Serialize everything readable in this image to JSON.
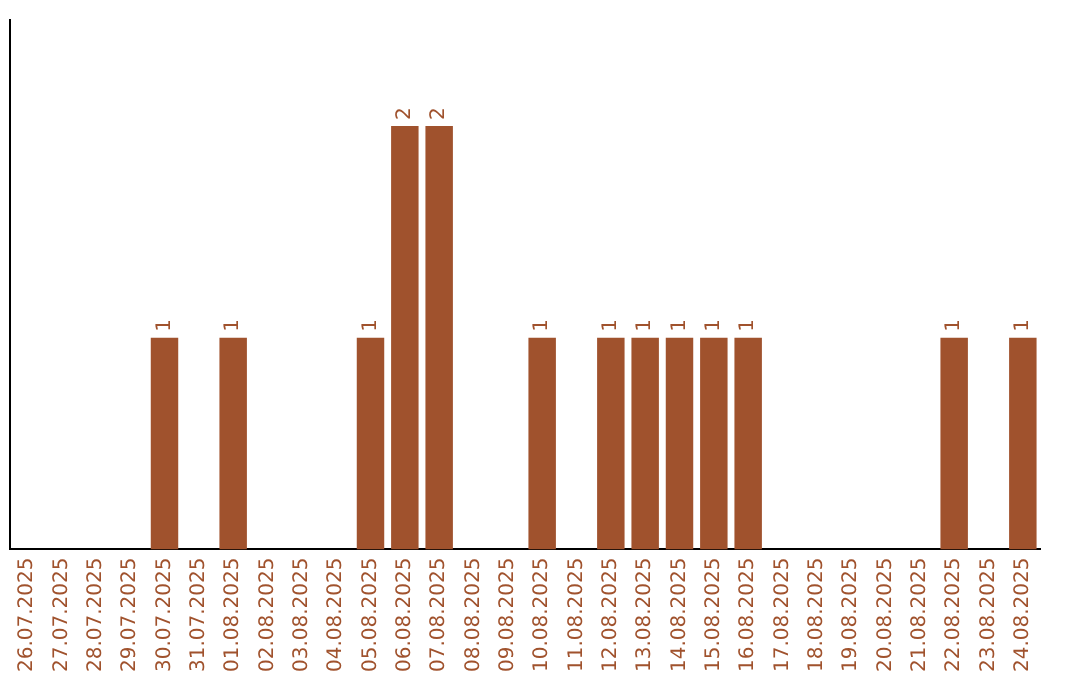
{
  "chart_data": {
    "type": "bar",
    "categories": [
      "26.07.2025",
      "27.07.2025",
      "28.07.2025",
      "29.07.2025",
      "30.07.2025",
      "31.07.2025",
      "01.08.2025",
      "02.08.2025",
      "03.08.2025",
      "04.08.2025",
      "05.08.2025",
      "06.08.2025",
      "07.08.2025",
      "08.08.2025",
      "09.08.2025",
      "10.08.2025",
      "11.08.2025",
      "12.08.2025",
      "13.08.2025",
      "14.08.2025",
      "15.08.2025",
      "16.08.2025",
      "17.08.2025",
      "18.08.2025",
      "19.08.2025",
      "20.08.2025",
      "21.08.2025",
      "22.08.2025",
      "23.08.2025",
      "24.08.2025"
    ],
    "values": [
      0,
      0,
      0,
      0,
      1,
      0,
      1,
      0,
      0,
      0,
      1,
      2,
      2,
      0,
      0,
      1,
      0,
      1,
      1,
      1,
      1,
      1,
      0,
      0,
      0,
      0,
      0,
      1,
      0,
      1
    ],
    "value_labels": [
      null,
      null,
      null,
      null,
      "1",
      null,
      "1",
      null,
      null,
      null,
      "1",
      "2",
      "2",
      null,
      null,
      "1",
      null,
      "1",
      "1",
      "1",
      "1",
      "1",
      null,
      null,
      null,
      null,
      null,
      "1",
      null,
      "1"
    ],
    "color": "#a0522d",
    "tick_labels": "x",
    "grid": false
  }
}
